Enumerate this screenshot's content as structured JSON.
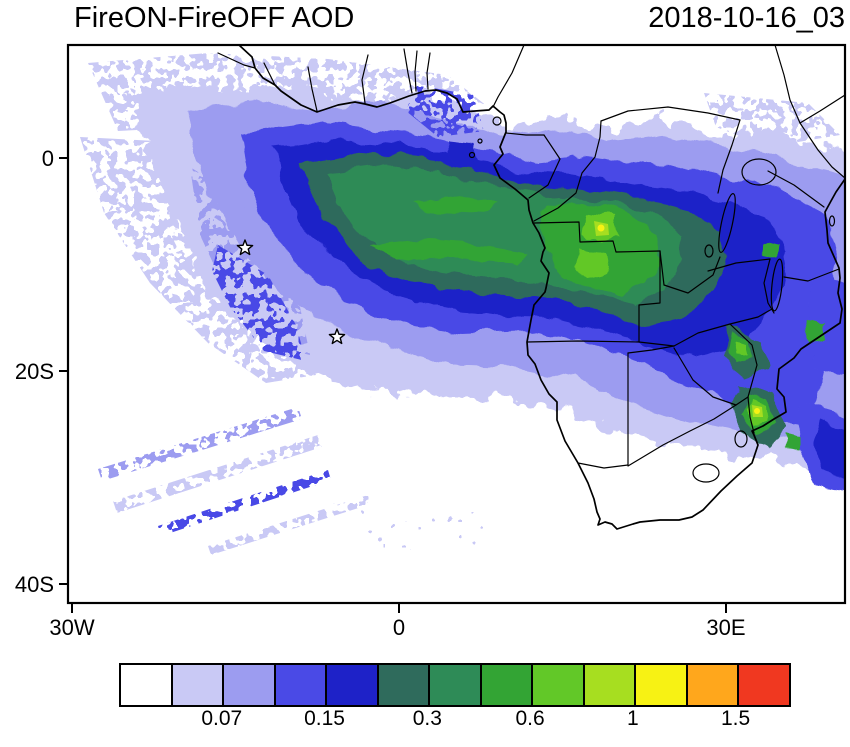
{
  "header": {
    "title": "FireON-FireOFF AOD",
    "date": "2018-10-16_03"
  },
  "chart_data": {
    "type": "heatmap",
    "title": "FireON-FireOFF AOD",
    "timestamp": "2018-10-16_03",
    "description": "Filled-contour map of aerosol optical depth difference (FireON minus FireOFF) over Africa and the South Atlantic; a biomass-burning plume extends from Angola/DRC westward over the ocean with speckled low-value fringes over the Atlantic.",
    "x_axis": {
      "ticks": [
        "30W",
        "0",
        "30E"
      ],
      "lon_values": [
        -30,
        0,
        30
      ]
    },
    "y_axis": {
      "ticks": [
        "0",
        "20S",
        "40S"
      ],
      "lat_values": [
        0,
        -20,
        -40
      ]
    },
    "extent": {
      "lon_min": -30.4,
      "lon_max": 40.9,
      "lat_min": -41.8,
      "lat_max": 10.6
    },
    "grid": false,
    "colorbar": {
      "orientation": "horizontal",
      "labels": [
        "0.07",
        "0.15",
        "0.3",
        "0.6",
        "1",
        "1.5"
      ],
      "colors": [
        "#FFFFFF",
        "#C9C9F5",
        "#9C9CF0",
        "#4A4AE6",
        "#1E22C8",
        "#2F6B5C",
        "#2E8B57",
        "#33A434",
        "#62C828",
        "#A7DE20",
        "#F7F214",
        "#FFA71C",
        "#F03820"
      ],
      "labeled_boundaries": [
        2,
        4,
        6,
        8,
        10,
        12
      ]
    },
    "markers": [
      {
        "shape": "star",
        "lon": -14.1,
        "lat": -8.5
      },
      {
        "shape": "star",
        "lon": -5.7,
        "lat": -16.8
      }
    ],
    "local_maxima": [
      {
        "lon": 18.5,
        "lat": -6.6,
        "value_band": "1 to 1.5"
      },
      {
        "lon": 32.8,
        "lat": -23.8,
        "value_band": "1 to 1.5"
      }
    ]
  }
}
